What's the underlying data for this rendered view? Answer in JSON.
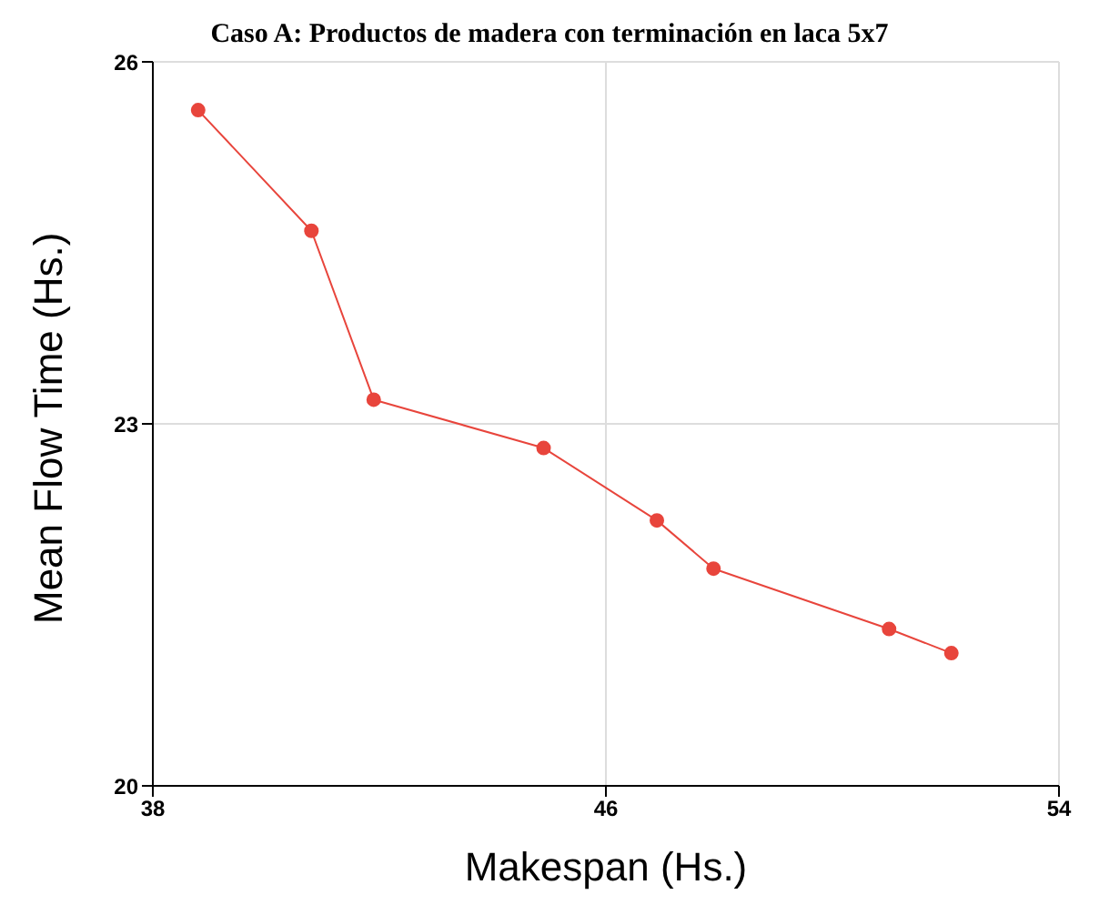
{
  "chart_data": {
    "type": "line",
    "title": "Caso A: Productos de madera con terminación en laca 5x7",
    "xlabel": "Makespan (Hs.)",
    "ylabel": "Mean Flow Time (Hs.)",
    "x": [
      38.8,
      40.8,
      41.9,
      44.9,
      46.9,
      47.9,
      51.0,
      52.1
    ],
    "series": [
      {
        "color": "#e8453c",
        "values": [
          25.6,
          24.6,
          23.2,
          22.8,
          22.2,
          21.8,
          21.3,
          21.1
        ]
      }
    ],
    "xlim": [
      38,
      54
    ],
    "xticks": [
      38,
      46,
      54
    ],
    "ylim": [
      20,
      26
    ],
    "yticks": [
      20,
      23,
      26
    ],
    "grid": true,
    "legend": false,
    "marker": "circle",
    "line_style": "solid"
  }
}
